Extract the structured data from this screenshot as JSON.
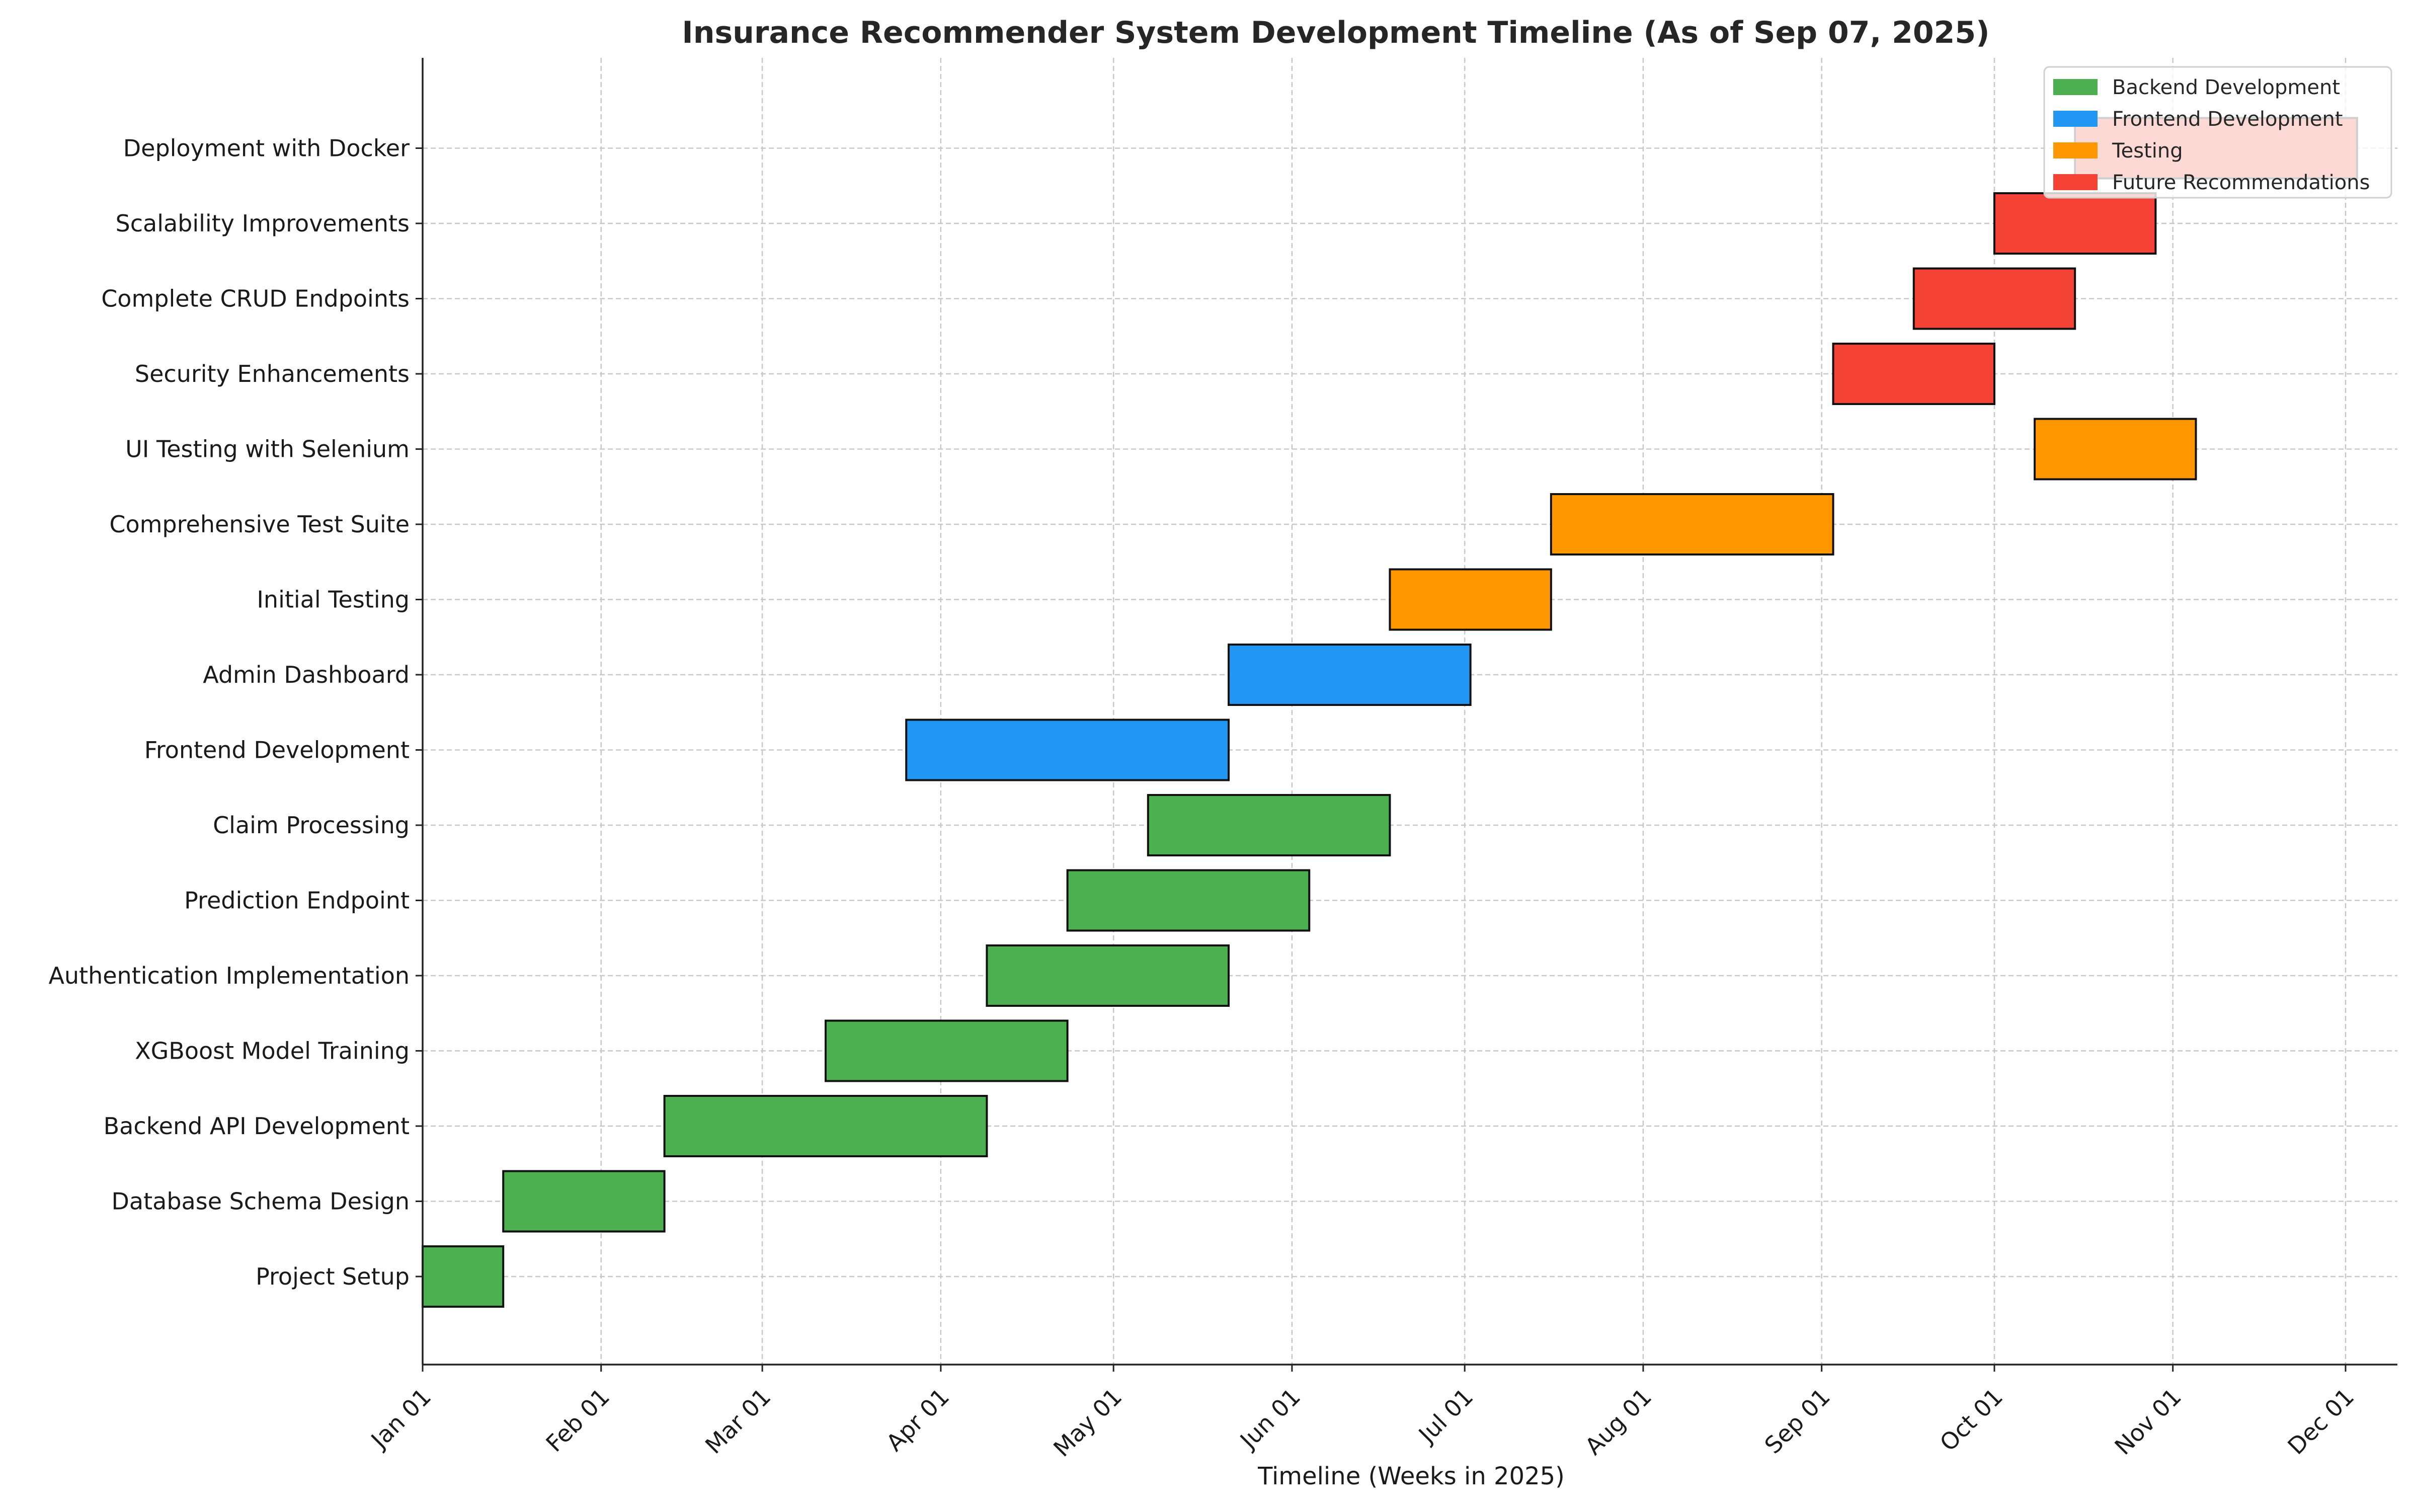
{
  "chart_data": {
    "type": "gantt",
    "title": "Insurance Recommender System Development Timeline (As of Sep 07, 2025)",
    "xlabel": "Timeline (Weeks in 2025)",
    "ylabel": "",
    "x_range": [
      "2025-01-01",
      "2025-12-10"
    ],
    "x_ticks": [
      {
        "date": "2025-01-01",
        "label": "Jan 01"
      },
      {
        "date": "2025-02-01",
        "label": "Feb 01"
      },
      {
        "date": "2025-03-01",
        "label": "Mar 01"
      },
      {
        "date": "2025-04-01",
        "label": "Apr 01"
      },
      {
        "date": "2025-05-01",
        "label": "May 01"
      },
      {
        "date": "2025-06-01",
        "label": "Jun 01"
      },
      {
        "date": "2025-07-01",
        "label": "Jul 01"
      },
      {
        "date": "2025-08-01",
        "label": "Aug 01"
      },
      {
        "date": "2025-09-01",
        "label": "Sep 01"
      },
      {
        "date": "2025-10-01",
        "label": "Oct 01"
      },
      {
        "date": "2025-11-01",
        "label": "Nov 01"
      },
      {
        "date": "2025-12-01",
        "label": "Dec 01"
      }
    ],
    "categories": [
      {
        "name": "Backend Development",
        "color": "#4caf50"
      },
      {
        "name": "Frontend Development",
        "color": "#2196f3"
      },
      {
        "name": "Testing",
        "color": "#ff9800"
      },
      {
        "name": "Future Recommendations",
        "color": "#f44336"
      }
    ],
    "legend_position": "top-right",
    "grid": true,
    "tasks": [
      {
        "name": "Project Setup",
        "category": "Backend Development",
        "start": "2025-01-01",
        "end": "2025-01-15"
      },
      {
        "name": "Database Schema Design",
        "category": "Backend Development",
        "start": "2025-01-15",
        "end": "2025-02-12"
      },
      {
        "name": "Backend API Development",
        "category": "Backend Development",
        "start": "2025-02-12",
        "end": "2025-04-09"
      },
      {
        "name": "XGBoost Model Training",
        "category": "Backend Development",
        "start": "2025-03-12",
        "end": "2025-04-23"
      },
      {
        "name": "Authentication Implementation",
        "category": "Backend Development",
        "start": "2025-04-09",
        "end": "2025-05-21"
      },
      {
        "name": "Prediction Endpoint",
        "category": "Backend Development",
        "start": "2025-04-23",
        "end": "2025-06-04"
      },
      {
        "name": "Claim Processing",
        "category": "Backend Development",
        "start": "2025-05-07",
        "end": "2025-06-18"
      },
      {
        "name": "Frontend Development",
        "category": "Frontend Development",
        "start": "2025-03-26",
        "end": "2025-05-21"
      },
      {
        "name": "Admin Dashboard",
        "category": "Frontend Development",
        "start": "2025-05-21",
        "end": "2025-07-02"
      },
      {
        "name": "Initial Testing",
        "category": "Testing",
        "start": "2025-06-18",
        "end": "2025-07-16"
      },
      {
        "name": "Comprehensive Test Suite",
        "category": "Testing",
        "start": "2025-07-16",
        "end": "2025-09-03"
      },
      {
        "name": "UI Testing with Selenium",
        "category": "Testing",
        "start": "2025-10-08",
        "end": "2025-11-05"
      },
      {
        "name": "Security Enhancements",
        "category": "Future Recommendations",
        "start": "2025-09-03",
        "end": "2025-10-01"
      },
      {
        "name": "Complete CRUD Endpoints",
        "category": "Future Recommendations",
        "start": "2025-09-17",
        "end": "2025-10-15"
      },
      {
        "name": "Scalability Improvements",
        "category": "Future Recommendations",
        "start": "2025-10-01",
        "end": "2025-10-29"
      },
      {
        "name": "Deployment with Docker",
        "category": "Future Recommendations",
        "start": "2025-10-15",
        "end": "2025-12-03"
      }
    ]
  }
}
